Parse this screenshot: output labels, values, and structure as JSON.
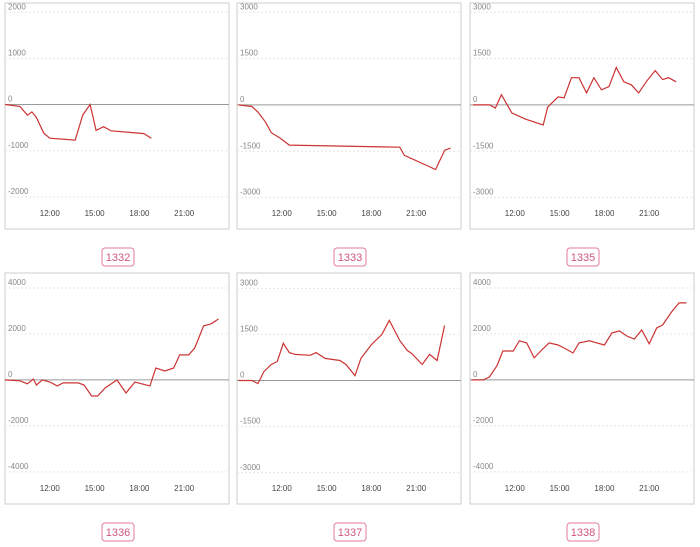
{
  "chart_data": [
    {
      "type": "line",
      "title": "1332",
      "color": "#cc3333",
      "grid": true,
      "x": [
        9,
        10,
        10.5,
        10.8,
        11.1,
        11.6,
        12,
        13.7,
        14.2,
        14.7,
        15.1,
        15.6,
        16.1,
        18.3,
        18.8
      ],
      "values": [
        0,
        -40,
        -230,
        -160,
        -280,
        -620,
        -730,
        -770,
        -230,
        0,
        -560,
        -480,
        -570,
        -630,
        -730
      ],
      "xlim": [
        9,
        24
      ],
      "xticks": [
        {
          "value": 12,
          "label": "12:00"
        },
        {
          "value": 15,
          "label": "15:00"
        },
        {
          "value": 18,
          "label": "18:00"
        },
        {
          "value": 21,
          "label": "21:00"
        }
      ],
      "ylim": [
        -2350,
        2200
      ],
      "yticks": [
        -2000,
        -1000,
        0,
        1000,
        2000
      ]
    },
    {
      "type": "line",
      "title": "1333",
      "color": "#cc3333",
      "grid": true,
      "x": [
        9.1,
        10,
        10.4,
        10.9,
        11.3,
        11.9,
        12.5,
        19.9,
        20.2,
        22.3,
        22.9,
        23.3
      ],
      "values": [
        0,
        -50,
        -230,
        -550,
        -900,
        -1080,
        -1300,
        -1370,
        -1630,
        -2090,
        -1470,
        -1400
      ],
      "xlim": [
        9,
        24
      ],
      "xticks": [
        {
          "value": 12,
          "label": "12:00"
        },
        {
          "value": 15,
          "label": "15:00"
        },
        {
          "value": 18,
          "label": "18:00"
        },
        {
          "value": 21,
          "label": "21:00"
        }
      ],
      "ylim": [
        -3500,
        3300
      ],
      "yticks": [
        -3000,
        -1500,
        0,
        1500,
        3000
      ]
    },
    {
      "type": "line",
      "title": "1335",
      "color": "#cc3333",
      "grid": true,
      "x": [
        9.2,
        10.3,
        10.7,
        11.1,
        11.8,
        12.7,
        13.9,
        14.2,
        14.9,
        15.3,
        15.8,
        16.3,
        16.8,
        17.3,
        17.8,
        18.3,
        18.8,
        19.3,
        19.8,
        20.3,
        20.8,
        21.4,
        21.9,
        22.3,
        22.8
      ],
      "values": [
        0,
        0,
        -100,
        330,
        -260,
        -460,
        -650,
        -70,
        260,
        230,
        880,
        880,
        390,
        880,
        490,
        590,
        1210,
        750,
        650,
        390,
        750,
        1110,
        820,
        880,
        750
      ],
      "xlim": [
        9,
        24
      ],
      "xticks": [
        {
          "value": 12,
          "label": "12:00"
        },
        {
          "value": 15,
          "label": "15:00"
        },
        {
          "value": 18,
          "label": "18:00"
        },
        {
          "value": 21,
          "label": "21:00"
        }
      ],
      "ylim": [
        -3500,
        3300
      ],
      "yticks": [
        -3000,
        -1500,
        0,
        1500,
        3000
      ]
    },
    {
      "type": "line",
      "title": "1336",
      "color": "#cc3333",
      "grid": true,
      "x": [
        9,
        10,
        10.5,
        10.9,
        11.1,
        11.5,
        12,
        12.5,
        12.9,
        13.9,
        14.3,
        14.8,
        15.2,
        15.7,
        16.5,
        17.1,
        17.7,
        18.7,
        19.1,
        19.7,
        20.3,
        20.7,
        21.3,
        21.7,
        22.3,
        22.8,
        23.3
      ],
      "values": [
        0,
        -40,
        -170,
        40,
        -220,
        0,
        -90,
        -260,
        -130,
        -130,
        -220,
        -700,
        -700,
        -350,
        0,
        -570,
        -90,
        -260,
        520,
        390,
        520,
        1090,
        1090,
        1390,
        2350,
        2440,
        2650
      ],
      "xlim": [
        9,
        24
      ],
      "xticks": [
        {
          "value": 12,
          "label": "12:00"
        },
        {
          "value": 15,
          "label": "15:00"
        },
        {
          "value": 18,
          "label": "18:00"
        },
        {
          "value": 21,
          "label": "21:00"
        }
      ],
      "ylim": [
        -4700,
        4650
      ],
      "yticks": [
        -4000,
        -2000,
        0,
        2000,
        4000
      ]
    },
    {
      "type": "line",
      "title": "1337",
      "color": "#cc3333",
      "grid": true,
      "x": [
        9.1,
        10,
        10.4,
        10.8,
        11.3,
        11.7,
        12.1,
        12.5,
        12.9,
        13.9,
        14.3,
        14.9,
        15.9,
        16.3,
        16.9,
        17.3,
        18,
        18.7,
        19.2,
        19.9,
        20.4,
        20.7,
        21.4,
        21.9,
        22.4,
        22.9
      ],
      "values": [
        0,
        0,
        -100,
        290,
        520,
        620,
        1210,
        910,
        850,
        820,
        910,
        720,
        650,
        520,
        160,
        720,
        1170,
        1500,
        1960,
        1300,
        980,
        880,
        520,
        850,
        650,
        1790
      ],
      "xlim": [
        9,
        24
      ],
      "xticks": [
        {
          "value": 12,
          "label": "12:00"
        },
        {
          "value": 15,
          "label": "15:00"
        },
        {
          "value": 18,
          "label": "18:00"
        },
        {
          "value": 21,
          "label": "21:00"
        }
      ],
      "ylim": [
        -3500,
        3500
      ],
      "yticks": [
        -3000,
        -1500,
        0,
        1500,
        3000
      ]
    },
    {
      "type": "line",
      "title": "1338",
      "color": "#cc3333",
      "grid": true,
      "x": [
        9.1,
        9.9,
        10.3,
        10.8,
        11.2,
        11.9,
        12.3,
        12.8,
        13.3,
        13.8,
        14.3,
        14.9,
        15.3,
        15.9,
        16.3,
        17,
        17.5,
        18,
        18.5,
        19,
        19.5,
        20,
        20.5,
        21,
        21.5,
        21.9,
        22.5,
        23,
        23.5
      ],
      "values": [
        0,
        0,
        130,
        610,
        1260,
        1260,
        1700,
        1610,
        960,
        1300,
        1610,
        1520,
        1390,
        1170,
        1610,
        1700,
        1610,
        1520,
        2040,
        2130,
        1910,
        1780,
        2170,
        1570,
        2260,
        2390,
        2960,
        3350,
        3350
      ],
      "xlim": [
        9,
        24
      ],
      "xticks": [
        {
          "value": 12,
          "label": "12:00"
        },
        {
          "value": 15,
          "label": "15:00"
        },
        {
          "value": 18,
          "label": "18:00"
        },
        {
          "value": 21,
          "label": "21:00"
        }
      ],
      "ylim": [
        -4700,
        4650
      ],
      "yticks": [
        -4000,
        -2000,
        0,
        2000,
        4000
      ]
    }
  ]
}
